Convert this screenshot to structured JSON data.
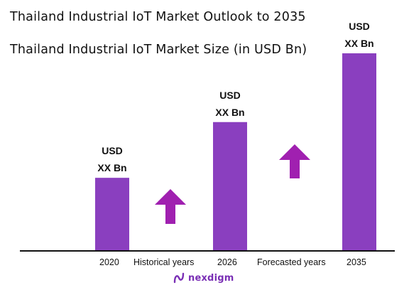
{
  "chart_data": {
    "type": "bar",
    "title": "Thailand Industrial IoT Market Outlook to 2035",
    "subtitle": "Thailand Industrial IoT Market Size (in USD Bn)",
    "categories": [
      "2020",
      "2026",
      "2035"
    ],
    "values": [
      1.0,
      1.77,
      2.72
    ],
    "value_labels": [
      {
        "line1": "USD",
        "line2": "XX Bn"
      },
      {
        "line1": "USD",
        "line2": "XX Bn"
      },
      {
        "line1": "USD",
        "line2": "XX Bn"
      }
    ],
    "period_labels": [
      "Historical years",
      "Forecasted years"
    ],
    "bar_color": "#8a3fbf",
    "arrow_color": "#a020b0",
    "grid": false,
    "legend": "none"
  },
  "branding": {
    "logo_text": "nexdigm",
    "logo_color": "#7a2fb5"
  }
}
